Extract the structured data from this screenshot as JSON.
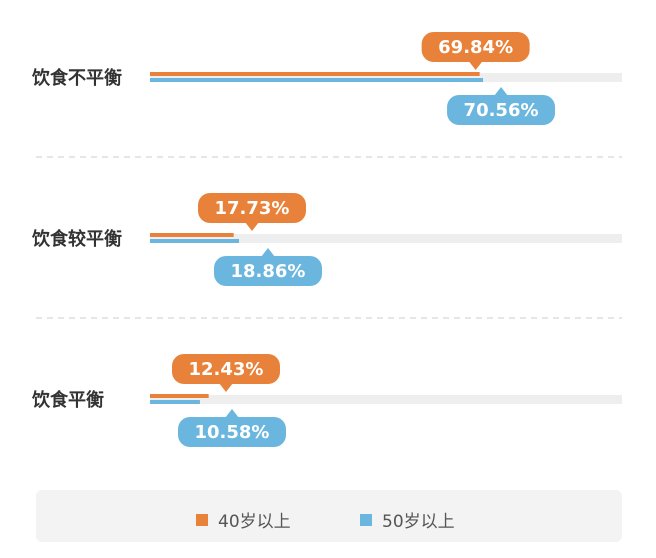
{
  "chart_data": {
    "type": "bar",
    "orientation": "horizontal",
    "categories": [
      "饮食不平衡",
      "饮食较平衡",
      "饮食平衡"
    ],
    "series": [
      {
        "name": "40岁以上",
        "values": [
          69.84,
          17.73,
          12.43
        ],
        "labels": [
          "69.84%",
          "17.73%",
          "12.43%"
        ]
      },
      {
        "name": "50岁以上",
        "values": [
          70.56,
          18.86,
          10.58
        ],
        "labels": [
          "70.56%",
          "18.86%",
          "10.58%"
        ]
      }
    ],
    "xlim": [
      0,
      100
    ],
    "grid": false,
    "legend_position": "bottom",
    "colors": {
      "series_40": "#e8823a",
      "series_50": "#6bb6de",
      "track": "#eeeeee",
      "divider": "#dddddd",
      "category_text": "#333333",
      "legend_bg": "#f3f3f3"
    }
  },
  "legend": {
    "items": [
      {
        "label": "40岁以上",
        "color": "#e8823a"
      },
      {
        "label": "50岁以上",
        "color": "#6bb6de"
      }
    ]
  }
}
